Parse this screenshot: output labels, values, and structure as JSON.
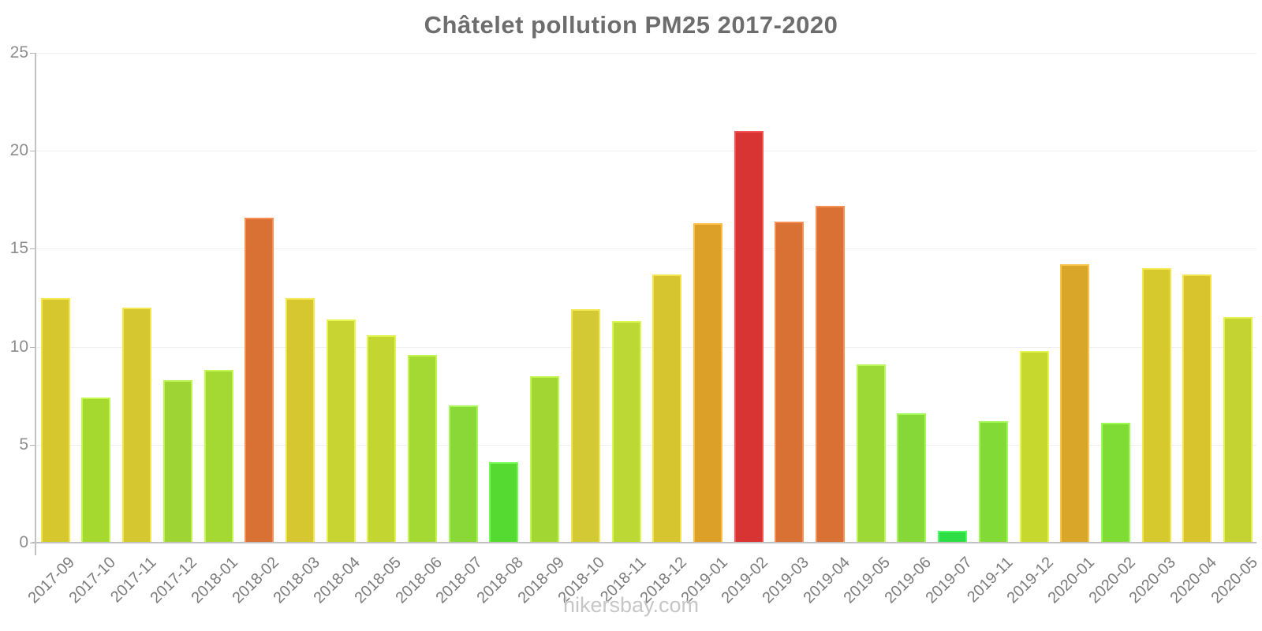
{
  "page": {
    "title": "Châtelet pollution PM25 2017-2020",
    "footer": "hikersbay.com"
  },
  "chart_data": {
    "type": "bar",
    "title": "Châtelet pollution PM25 2017-2020",
    "xlabel": "",
    "ylabel": "",
    "ylim": [
      0,
      25
    ],
    "yticks": [
      0,
      5,
      10,
      15,
      20,
      25
    ],
    "grid": true,
    "legend": false,
    "categories": [
      "2017-09",
      "2017-10",
      "2017-11",
      "2017-12",
      "2018-01",
      "2018-02",
      "2018-03",
      "2018-04",
      "2018-05",
      "2018-06",
      "2018-07",
      "2018-08",
      "2018-09",
      "2018-10",
      "2018-11",
      "2018-12",
      "2019-01",
      "2019-02",
      "2019-03",
      "2019-04",
      "2019-05",
      "2019-06",
      "2019-07",
      "2019-11",
      "2019-12",
      "2020-01",
      "2020-02",
      "2020-03",
      "2020-04",
      "2020-05"
    ],
    "series": [
      {
        "name": "PM25",
        "values": [
          12.5,
          7.4,
          12.0,
          8.3,
          8.8,
          16.6,
          12.5,
          11.4,
          10.6,
          9.6,
          7.0,
          4.1,
          8.5,
          11.9,
          11.3,
          13.7,
          16.3,
          21.0,
          16.4,
          17.2,
          9.1,
          6.6,
          0.6,
          6.2,
          9.8,
          14.2,
          6.1,
          14.0,
          13.7,
          11.5
        ],
        "colors": [
          "#d6c72f",
          "#a5d930",
          "#d5c72f",
          "#9ed433",
          "#a4d832",
          "#d87133",
          "#d6c62f",
          "#c8d432",
          "#c3d531",
          "#a4d833",
          "#8ad838",
          "#55da31",
          "#a2d733",
          "#d2c934",
          "#bcd834",
          "#d7c52f",
          "#dca028",
          "#d83434",
          "#d87133",
          "#d87133",
          "#9cd936",
          "#85d837",
          "#2edd44",
          "#82da36",
          "#c6d82e",
          "#d9a62a",
          "#7fdc35",
          "#d6c92e",
          "#d8c52e",
          "#c4d332"
        ]
      }
    ]
  }
}
